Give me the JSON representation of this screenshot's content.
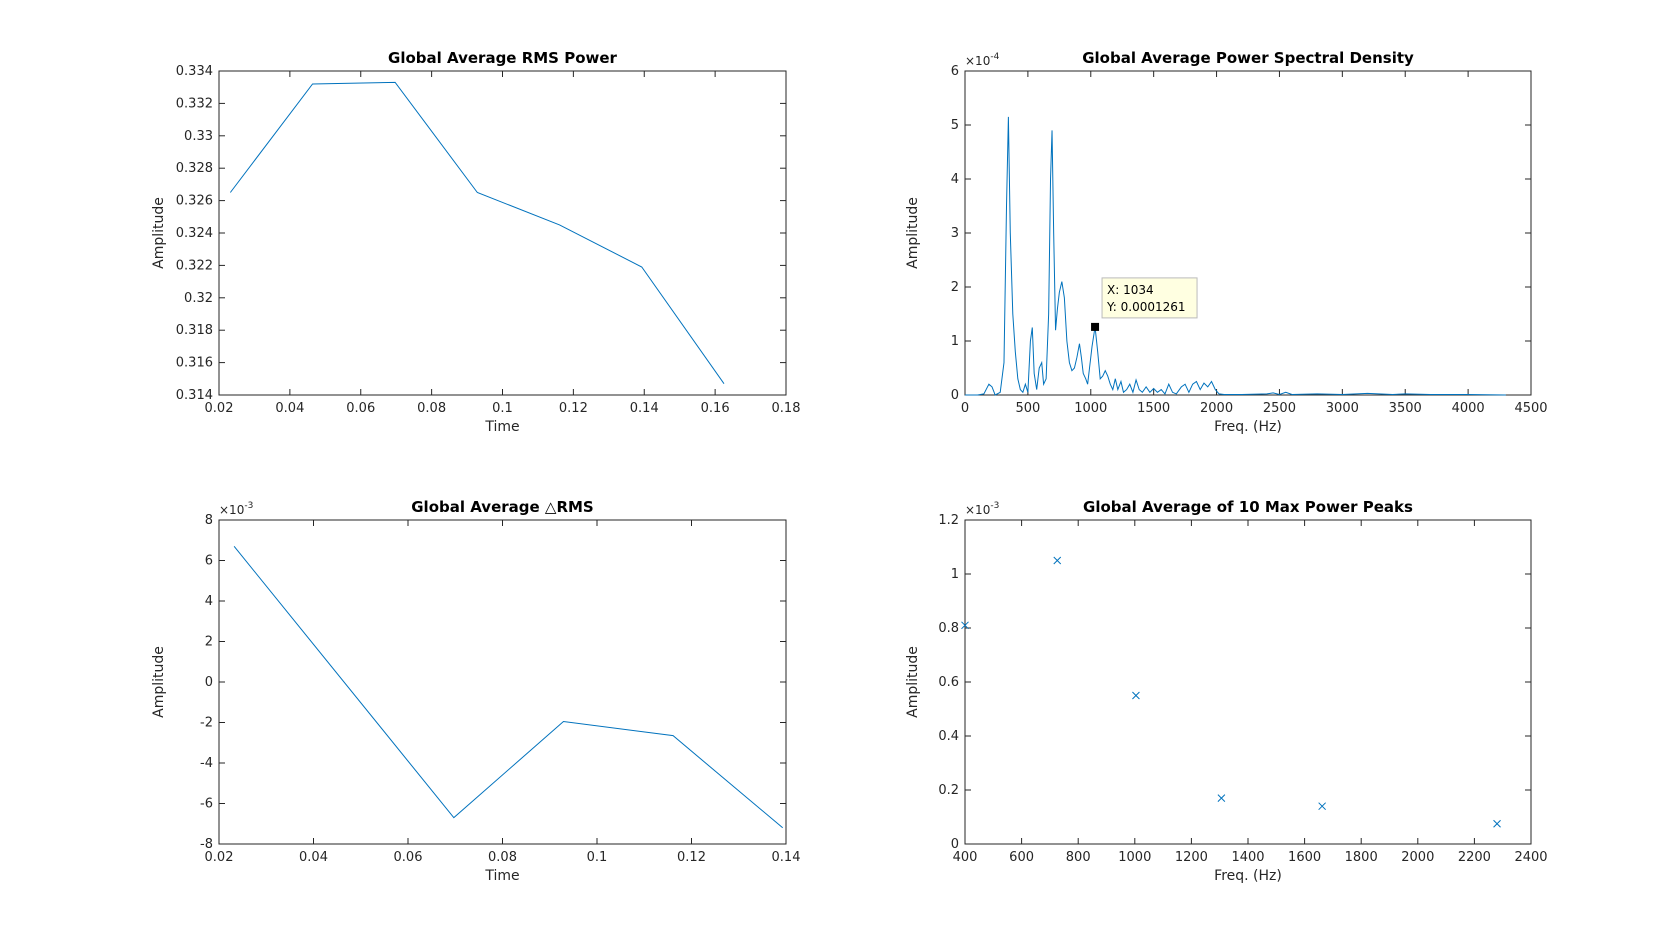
{
  "chart_data": [
    {
      "type": "line",
      "title": "Global Average RMS Power",
      "xlabel": "Time",
      "ylabel": "Amplitude",
      "x": [
        0.0232,
        0.0464,
        0.0697,
        0.0929,
        0.1161,
        0.1393,
        0.1625
      ],
      "values": [
        0.3265,
        0.3332,
        0.3333,
        0.3265,
        0.3245,
        0.3219,
        0.3147
      ],
      "color": "#0072bd",
      "xlim": [
        0.02,
        0.18
      ],
      "xticks": [
        0.02,
        0.04,
        0.06,
        0.08,
        0.1,
        0.12,
        0.14,
        0.16,
        0.18
      ],
      "ylim": [
        0.314,
        0.334
      ],
      "yticks": [
        0.314,
        0.316,
        0.318,
        0.32,
        0.322,
        0.324,
        0.326,
        0.328,
        0.33,
        0.332,
        0.334
      ]
    },
    {
      "type": "line",
      "title": "Global Average Power Spectral Density",
      "xlabel": "Freq. (Hz)",
      "ylabel": "Amplitude",
      "y_scale": {
        "base": "×10",
        "exponent": "-4"
      },
      "x": [
        0,
        100,
        150,
        190,
        215,
        240,
        280,
        310,
        330,
        345,
        360,
        380,
        400,
        420,
        440,
        460,
        480,
        500,
        520,
        535,
        550,
        570,
        590,
        610,
        625,
        645,
        665,
        680,
        692,
        705,
        720,
        735,
        750,
        770,
        790,
        810,
        830,
        850,
        870,
        890,
        910,
        925,
        940,
        960,
        975,
        990,
        1010,
        1034,
        1055,
        1075,
        1095,
        1115,
        1135,
        1155,
        1175,
        1195,
        1215,
        1240,
        1260,
        1285,
        1310,
        1335,
        1360,
        1385,
        1410,
        1440,
        1470,
        1500,
        1530,
        1560,
        1590,
        1620,
        1650,
        1680,
        1720,
        1750,
        1780,
        1810,
        1840,
        1870,
        1900,
        1930,
        1960,
        1990,
        2020,
        2060,
        2200,
        2400,
        2450,
        2500,
        2550,
        2600,
        2800,
        3000,
        3200,
        3400,
        3500,
        3700,
        4000,
        4300
      ],
      "values": [
        0,
        0,
        0.02,
        0.2,
        0.15,
        0,
        0.05,
        0.6,
        3.5,
        5.15,
        3.0,
        1.5,
        0.8,
        0.3,
        0.1,
        0.05,
        0.2,
        0.05,
        1.0,
        1.25,
        0.4,
        0.1,
        0.5,
        0.6,
        0.2,
        0.3,
        1.5,
        4.0,
        4.9,
        3.0,
        1.2,
        1.6,
        1.9,
        2.1,
        1.8,
        1.0,
        0.6,
        0.45,
        0.5,
        0.7,
        0.95,
        0.7,
        0.4,
        0.3,
        0.2,
        0.5,
        0.9,
        1.261,
        0.8,
        0.3,
        0.35,
        0.45,
        0.35,
        0.2,
        0.1,
        0.3,
        0.1,
        0.25,
        0.05,
        0.1,
        0.2,
        0.05,
        0.28,
        0.1,
        0.05,
        0.15,
        0.05,
        0.12,
        0.05,
        0.1,
        0.02,
        0.2,
        0.05,
        0.02,
        0.15,
        0.2,
        0.05,
        0.2,
        0.25,
        0.1,
        0.22,
        0.15,
        0.25,
        0.1,
        0.02,
        0.01,
        0.01,
        0.02,
        0.04,
        0.01,
        0.05,
        0.01,
        0.02,
        0.01,
        0.03,
        0.01,
        0.02,
        0.01,
        0.01,
        0
      ],
      "color": "#0072bd",
      "datatip": {
        "x": 1034,
        "y": 1.261,
        "label_x": "X: 1034",
        "label_y": "Y: 0.0001261"
      },
      "xlim": [
        0,
        4500
      ],
      "xticks": [
        0,
        500,
        1000,
        1500,
        2000,
        2500,
        3000,
        3500,
        4000,
        4500
      ],
      "ylim": [
        0,
        6
      ],
      "yticks": [
        0,
        1,
        2,
        3,
        4,
        5,
        6
      ]
    },
    {
      "type": "line",
      "title": "Global Average △RMS",
      "xlabel": "Time",
      "ylabel": "Amplitude",
      "y_scale": {
        "base": "×10",
        "exponent": "-3"
      },
      "x": [
        0.0232,
        0.0697,
        0.0929,
        0.1161,
        0.1393
      ],
      "values": [
        6.7,
        -6.7,
        -1.95,
        -2.65,
        -7.2
      ],
      "color": "#0072bd",
      "xlim": [
        0.02,
        0.14
      ],
      "xticks": [
        0.02,
        0.04,
        0.06,
        0.08,
        0.1,
        0.12,
        0.14
      ],
      "ylim": [
        -8,
        8
      ],
      "yticks": [
        -8,
        -6,
        -4,
        -2,
        0,
        2,
        4,
        6,
        8
      ]
    },
    {
      "type": "scatter",
      "title": "Global Average of 10 Max Power Peaks",
      "xlabel": "Freq. (Hz)",
      "ylabel": "Amplitude",
      "y_scale": {
        "base": "×10",
        "exponent": "-3"
      },
      "x": [
        400,
        726,
        1004,
        1306,
        1662,
        2280
      ],
      "values": [
        0.81,
        1.05,
        0.55,
        0.17,
        0.14,
        0.075
      ],
      "color": "#0072bd",
      "xlim": [
        400,
        2400
      ],
      "xticks": [
        400,
        600,
        800,
        1000,
        1200,
        1400,
        1600,
        1800,
        2000,
        2200,
        2400
      ],
      "ylim": [
        0,
        1.2
      ],
      "yticks": [
        0,
        0.2,
        0.4,
        0.6,
        0.8,
        1,
        1.2
      ]
    }
  ]
}
